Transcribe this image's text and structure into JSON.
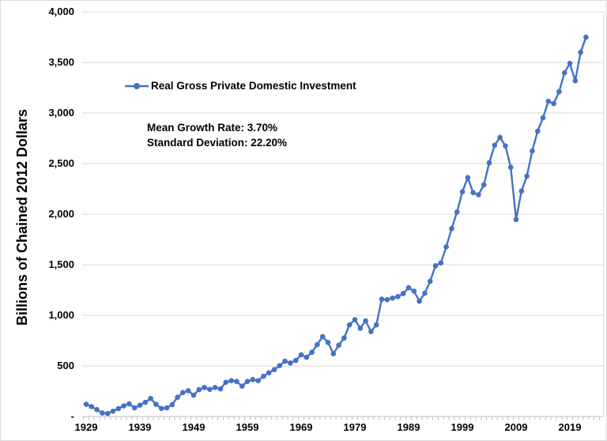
{
  "chart_data": {
    "type": "line",
    "title": "",
    "xlabel": "",
    "ylabel": "Billions of Chained 2012 Dollars",
    "ylim": [
      0,
      4000
    ],
    "ytick_interval": 500,
    "ytick_labels": [
      "4,000",
      "3,500",
      "3,000",
      "2,500",
      "2,000",
      "1,500",
      "1,000",
      "500",
      "-"
    ],
    "xtick_labels": [
      "1929",
      "1939",
      "1949",
      "1959",
      "1969",
      "1979",
      "1989",
      "1999",
      "2009",
      "2019"
    ],
    "grid": true,
    "legend_position": "inside-top-left",
    "line_color": "#4472C4",
    "marker": "circle",
    "annotations": [
      "Mean Growth Rate: 3.70%",
      "Standard Deviation: 22.20%"
    ],
    "x_start_year": 1929,
    "x_end_year": 2022,
    "series": [
      {
        "name": "Real Gross Private Domestic Investment",
        "values": [
          120,
          98,
          68,
          34,
          30,
          52,
          78,
          105,
          125,
          86,
          112,
          140,
          178,
          120,
          80,
          86,
          117,
          190,
          237,
          255,
          210,
          265,
          287,
          268,
          287,
          273,
          338,
          354,
          346,
          300,
          346,
          365,
          354,
          398,
          432,
          463,
          502,
          547,
          529,
          554,
          610,
          585,
          635,
          711,
          790,
          732,
          620,
          705,
          776,
          906,
          958,
          872,
          945,
          840,
          906,
          1160,
          1155,
          1170,
          1185,
          1216,
          1273,
          1239,
          1140,
          1218,
          1336,
          1490,
          1518,
          1677,
          1857,
          2021,
          2221,
          2362,
          2213,
          2192,
          2291,
          2508,
          2681,
          2759,
          2676,
          2463,
          1947,
          2228,
          2376,
          2624,
          2820,
          2952,
          3116,
          3093,
          3210,
          3397,
          3491,
          3319,
          3600,
          3749
        ]
      }
    ]
  }
}
